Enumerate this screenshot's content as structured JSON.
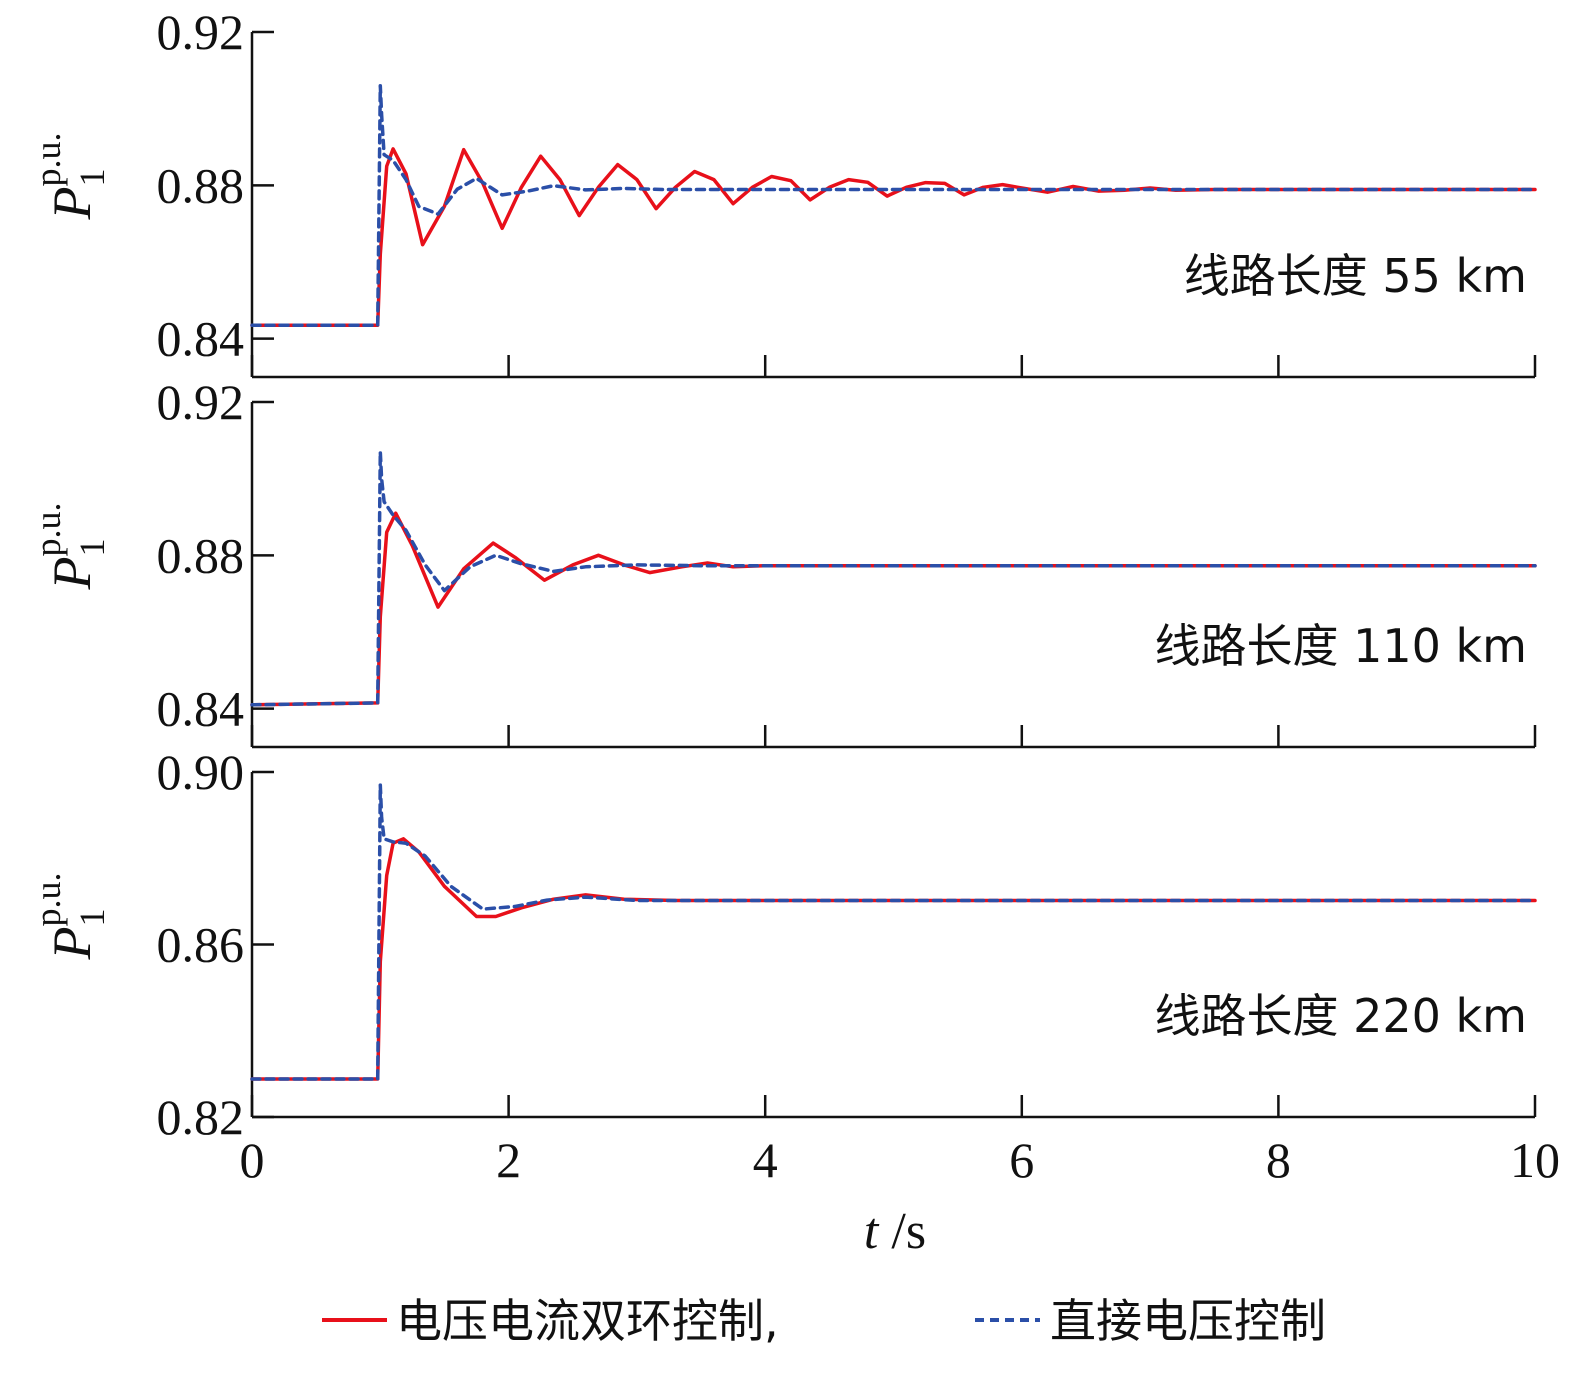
{
  "chart_data": [
    {
      "type": "line",
      "annotation": "线路长度 55 km",
      "ylabel_base": "P",
      "ylabel_sub": "1",
      "ylabel_sup": "p.u.",
      "xlim": [
        0,
        10
      ],
      "ylim": [
        0.83,
        0.92
      ],
      "yticks": [
        0.84,
        0.88,
        0.92
      ],
      "ytick_labels": [
        "0.84",
        "0.88",
        "0.92"
      ],
      "series": [
        {
          "color": "#e8101a",
          "style": "solid",
          "x": [
            0,
            0.98,
            1.0,
            1.05,
            1.1,
            1.2,
            1.33,
            1.5,
            1.65,
            1.8,
            1.95,
            2.1,
            2.25,
            2.4,
            2.55,
            2.7,
            2.85,
            3.0,
            3.15,
            3.3,
            3.45,
            3.6,
            3.75,
            3.9,
            4.05,
            4.2,
            4.35,
            4.5,
            4.65,
            4.8,
            4.95,
            5.1,
            5.25,
            5.4,
            5.55,
            5.7,
            5.85,
            6.0,
            6.2,
            6.4,
            6.6,
            6.8,
            7.0,
            7.2,
            7.5,
            8.0,
            9.0,
            10.0
          ],
          "y": [
            0.8435,
            0.8435,
            0.862,
            0.885,
            0.8895,
            0.883,
            0.8645,
            0.8745,
            0.8893,
            0.8805,
            0.8688,
            0.8795,
            0.8876,
            0.8815,
            0.8721,
            0.8795,
            0.8854,
            0.8815,
            0.8739,
            0.8795,
            0.8836,
            0.8815,
            0.8752,
            0.8795,
            0.8823,
            0.8812,
            0.8762,
            0.8795,
            0.8815,
            0.8808,
            0.8772,
            0.8795,
            0.8807,
            0.8805,
            0.8775,
            0.8795,
            0.8802,
            0.8793,
            0.8782,
            0.8797,
            0.8785,
            0.8787,
            0.8793,
            0.8787,
            0.8789,
            0.8789,
            0.8789,
            0.8789
          ]
        },
        {
          "color": "#2b4fa8",
          "style": "dashed",
          "x": [
            0,
            0.98,
            1.0,
            1.01,
            1.03,
            1.1,
            1.2,
            1.3,
            1.45,
            1.6,
            1.75,
            1.95,
            2.15,
            2.35,
            2.6,
            2.9,
            3.2,
            4.0,
            10.0
          ],
          "y": [
            0.8435,
            0.8435,
            0.906,
            0.8985,
            0.888,
            0.8865,
            0.8815,
            0.8745,
            0.8725,
            0.879,
            0.8818,
            0.8775,
            0.8785,
            0.8799,
            0.8788,
            0.8792,
            0.8789,
            0.8789,
            0.8789
          ]
        }
      ]
    },
    {
      "type": "line",
      "annotation": "线路长度 110 km",
      "ylabel_base": "P",
      "ylabel_sub": "1",
      "ylabel_sup": "p.u.",
      "xlim": [
        0,
        10
      ],
      "ylim": [
        0.83,
        0.92
      ],
      "yticks": [
        0.84,
        0.88,
        0.92
      ],
      "ytick_labels": [
        "0.84",
        "0.88",
        "0.92"
      ],
      "series": [
        {
          "color": "#e8101a",
          "style": "solid",
          "x": [
            0,
            0.98,
            1.0,
            1.05,
            1.12,
            1.25,
            1.45,
            1.65,
            1.88,
            2.05,
            2.28,
            2.5,
            2.7,
            2.9,
            3.1,
            3.35,
            3.55,
            3.75,
            4.0,
            5.0,
            10.0
          ],
          "y": [
            0.841,
            0.8415,
            0.864,
            0.886,
            0.891,
            0.8825,
            0.8665,
            0.8765,
            0.8832,
            0.8795,
            0.8735,
            0.8775,
            0.88,
            0.8775,
            0.8755,
            0.877,
            0.878,
            0.877,
            0.8773,
            0.8773,
            0.8773
          ]
        },
        {
          "color": "#2b4fa8",
          "style": "dashed",
          "x": [
            0,
            0.98,
            1.0,
            1.01,
            1.03,
            1.1,
            1.2,
            1.35,
            1.5,
            1.7,
            1.9,
            2.1,
            2.35,
            2.6,
            3.0,
            3.5,
            10.0
          ],
          "y": [
            0.841,
            0.8415,
            0.907,
            0.9,
            0.894,
            0.8905,
            0.8865,
            0.8775,
            0.8708,
            0.877,
            0.88,
            0.8778,
            0.8758,
            0.877,
            0.8775,
            0.8773,
            0.8773
          ]
        }
      ]
    },
    {
      "type": "line",
      "annotation": "线路长度 220 km",
      "ylabel_base": "P",
      "ylabel_sub": "1",
      "ylabel_sup": "p.u.",
      "xlim": [
        0,
        10
      ],
      "ylim": [
        0.82,
        0.9
      ],
      "yticks": [
        0.82,
        0.86,
        0.9
      ],
      "ytick_labels": [
        "0.82",
        "0.86",
        "0.90"
      ],
      "series": [
        {
          "color": "#e8101a",
          "style": "solid",
          "x": [
            0,
            0.98,
            1.0,
            1.05,
            1.1,
            1.18,
            1.3,
            1.5,
            1.75,
            1.9,
            2.1,
            2.35,
            2.6,
            2.9,
            3.3,
            4.0,
            10.0
          ],
          "y": [
            0.8288,
            0.8288,
            0.856,
            0.876,
            0.8835,
            0.8845,
            0.8815,
            0.8735,
            0.8665,
            0.8665,
            0.8685,
            0.8705,
            0.8715,
            0.8705,
            0.8702,
            0.8702,
            0.8702
          ]
        },
        {
          "color": "#2b4fa8",
          "style": "dashed",
          "x": [
            0,
            0.98,
            1.0,
            1.01,
            1.03,
            1.1,
            1.2,
            1.35,
            1.55,
            1.8,
            2.05,
            2.3,
            2.6,
            3.0,
            3.5,
            10.0
          ],
          "y": [
            0.8288,
            0.8288,
            0.897,
            0.8895,
            0.8845,
            0.8838,
            0.8835,
            0.8805,
            0.8735,
            0.8682,
            0.8688,
            0.8703,
            0.871,
            0.8702,
            0.8702,
            0.8702
          ]
        }
      ]
    }
  ],
  "xaxis": {
    "ticks": [
      0,
      2,
      4,
      6,
      8,
      10
    ],
    "tick_labels": [
      "0",
      "2",
      "4",
      "6",
      "8",
      "10"
    ],
    "label_var": "t",
    "label_unit": " /s"
  },
  "legend": {
    "entries": [
      {
        "label": "电压电流双环控制,",
        "color": "#e8101a",
        "style": "solid"
      },
      {
        "label": "直接电压控制",
        "color": "#2b4fa8",
        "style": "dashed"
      }
    ]
  }
}
